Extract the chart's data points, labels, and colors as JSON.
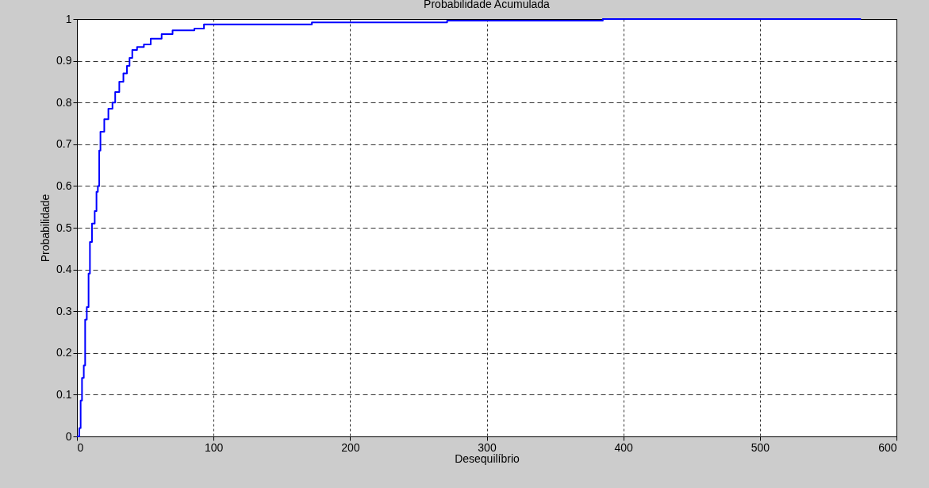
{
  "chart_data": {
    "type": "step",
    "title": "Probabilidade Acumulada",
    "xlabel": "Desequilíbrio",
    "ylabel": "Probabilidade",
    "x": [
      0,
      1.7,
      2.7,
      3.7,
      5,
      6,
      7.2,
      8.5,
      9.5,
      11,
      13,
      14.3,
      15.3,
      16.3,
      17.2,
      20,
      23,
      26,
      28,
      31,
      34,
      36.6,
      38.5,
      40.5,
      44,
      49,
      54,
      62,
      70,
      86,
      93,
      172,
      271,
      385,
      574
    ],
    "series": [
      {
        "color": "#0000ff",
        "values": [
          0,
          0.02,
          0.086,
          0.14,
          0.17,
          0.28,
          0.31,
          0.39,
          0.466,
          0.51,
          0.54,
          0.586,
          0.6,
          0.685,
          0.73,
          0.76,
          0.785,
          0.8,
          0.825,
          0.85,
          0.87,
          0.888,
          0.907,
          0.926,
          0.933,
          0.939,
          0.953,
          0.964,
          0.973,
          0.977,
          0.987,
          0.992,
          0.996,
          1,
          1
        ]
      }
    ],
    "xlim": [
      0,
      600
    ],
    "xticks": [
      0,
      100,
      200,
      300,
      400,
      500,
      600
    ],
    "ylim": [
      0,
      1
    ],
    "yticks": [
      0,
      0.1,
      0.2,
      0.3,
      0.4,
      0.5,
      0.6,
      0.7,
      0.8,
      0.9,
      1
    ],
    "grid": true,
    "line_style": "solid",
    "marker": "none"
  }
}
